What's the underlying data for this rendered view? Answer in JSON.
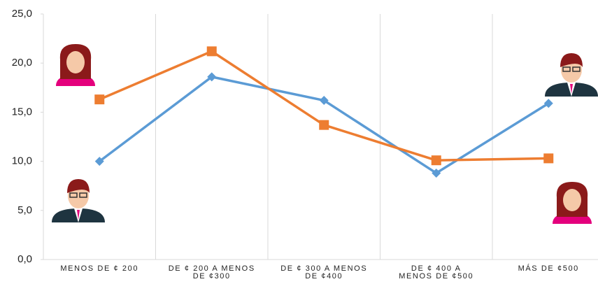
{
  "chart_data": {
    "type": "line",
    "categories": [
      "MENOS DE ¢ 200",
      "DE ¢ 200 A MENOS\nDE ¢300",
      "DE ¢ 300 A MENOS\nDE ¢400",
      "DE ¢ 400  A\nMENOS DE ¢500",
      "MÁS DE ¢500"
    ],
    "series": [
      {
        "color": "#5b9bd5",
        "marker": "diamond",
        "values": [
          10.0,
          18.6,
          16.2,
          8.8,
          15.9
        ]
      },
      {
        "color": "#ed7d31",
        "marker": "square",
        "values": [
          16.3,
          21.2,
          13.7,
          10.1,
          10.3
        ]
      }
    ],
    "ylim": [
      0,
      25
    ],
    "yticks": [
      {
        "value": 0,
        "label": "0,0"
      },
      {
        "value": 5,
        "label": "5,0"
      },
      {
        "value": 10,
        "label": "10,0"
      },
      {
        "value": 15,
        "label": "15,0"
      },
      {
        "value": 20,
        "label": "20,0"
      },
      {
        "value": 25,
        "label": "25,0"
      }
    ],
    "grid": false
  }
}
